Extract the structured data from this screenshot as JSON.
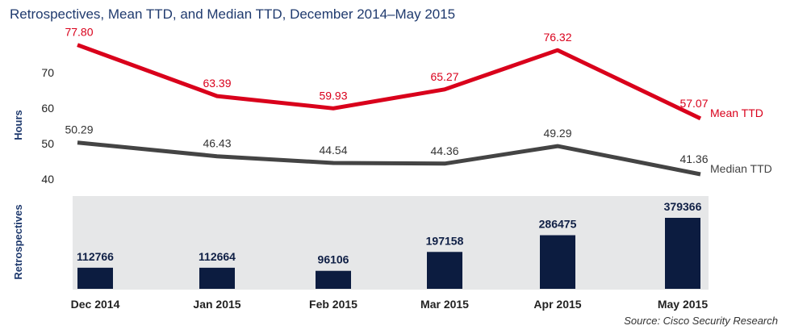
{
  "title": "Retrospectives, Mean TTD, and Median TTD, December 2014–May 2015",
  "source": "Source: Cisco Security Research",
  "colors": {
    "mean": "#d9001b",
    "median": "#444444",
    "bars": "#0c1c40",
    "panel": "#e6e7e8",
    "title": "#1f3a6e"
  },
  "chart_data": [
    {
      "type": "line",
      "title": "Retrospectives, Mean TTD, and Median TTD, December 2014–May 2015",
      "ylabel": "Hours",
      "yticks": [
        "70",
        "60",
        "50",
        "40"
      ],
      "ylim": [
        40,
        78
      ],
      "categories": [
        "Dec 2014",
        "Jan 2015",
        "Feb 2015",
        "Mar 2015",
        "Apr 2015",
        "May 2015"
      ],
      "series": [
        {
          "name": "Mean TTD",
          "values": [
            77.8,
            63.39,
            59.93,
            65.27,
            76.32,
            57.07
          ],
          "labels": [
            "77.80",
            "63.39",
            "59.93",
            "65.27",
            "76.32",
            "57.07"
          ]
        },
        {
          "name": "Median TTD",
          "values": [
            50.29,
            46.43,
            44.54,
            44.36,
            49.29,
            41.36
          ],
          "labels": [
            "50.29",
            "46.43",
            "44.54",
            "44.36",
            "49.29",
            "41.36"
          ]
        }
      ]
    },
    {
      "type": "bar",
      "ylabel": "Retrospectives",
      "categories": [
        "Dec 2014",
        "Jan 2015",
        "Feb 2015",
        "Mar 2015",
        "Apr 2015",
        "May 2015"
      ],
      "values": [
        112766,
        112664,
        96106,
        197158,
        286475,
        379366
      ],
      "labels": [
        "112766",
        "112664",
        "96106",
        "197158",
        "286475",
        "379366"
      ],
      "ylim": [
        0,
        379366
      ]
    }
  ]
}
